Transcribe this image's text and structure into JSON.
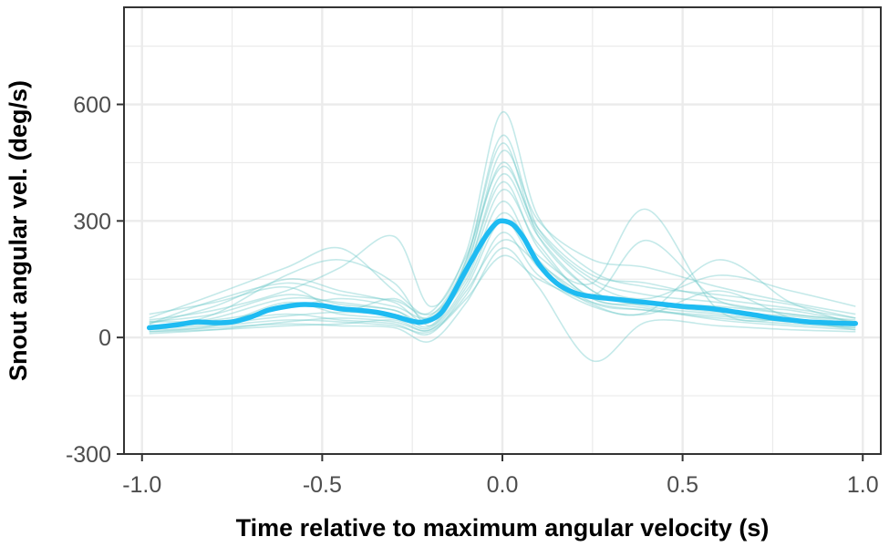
{
  "chart_data": {
    "type": "line",
    "title": "",
    "xlabel": "Time relative to maximum angular velocity (s)",
    "ylabel": "Snout angular vel. (deg/s)",
    "xlim": [
      -1.05,
      1.05
    ],
    "ylim": [
      -300,
      850
    ],
    "x_ticks": [
      -1.0,
      -0.5,
      0.0,
      0.5,
      1.0
    ],
    "x_tick_labels": [
      "-1.0",
      "-0.5",
      "0.0",
      "0.5",
      "1.0"
    ],
    "y_ticks": [
      -300,
      0,
      300,
      600
    ],
    "y_tick_labels": [
      "-300",
      "0",
      "300",
      "600"
    ],
    "grid": true,
    "legend": "none",
    "colors": {
      "mean_line": "#1EBBF2",
      "trials": "#6CC8C8",
      "grid": "#EBEBEB",
      "border": "#333333"
    },
    "series": [
      {
        "role": "mean",
        "x": [
          -0.98,
          -0.9,
          -0.85,
          -0.8,
          -0.75,
          -0.7,
          -0.65,
          -0.6,
          -0.55,
          -0.5,
          -0.45,
          -0.4,
          -0.35,
          -0.3,
          -0.25,
          -0.22,
          -0.18,
          -0.15,
          -0.1,
          -0.05,
          -0.02,
          0.0,
          0.03,
          0.06,
          0.1,
          0.15,
          0.2,
          0.25,
          0.3,
          0.35,
          0.4,
          0.45,
          0.5,
          0.55,
          0.6,
          0.65,
          0.7,
          0.75,
          0.8,
          0.85,
          0.9,
          0.95,
          0.98
        ],
        "y": [
          25,
          33,
          40,
          38,
          40,
          52,
          70,
          80,
          85,
          82,
          74,
          70,
          65,
          55,
          42,
          40,
          55,
          90,
          175,
          255,
          292,
          300,
          290,
          255,
          190,
          140,
          115,
          105,
          100,
          95,
          90,
          85,
          80,
          77,
          72,
          65,
          58,
          50,
          45,
          40,
          38,
          36,
          36
        ]
      },
      {
        "role": "trial",
        "x": [
          -0.98,
          -0.8,
          -0.6,
          -0.45,
          -0.3,
          -0.2,
          -0.1,
          0.0,
          0.1,
          0.25,
          0.4,
          0.6,
          0.8,
          0.98
        ],
        "y": [
          40,
          60,
          110,
          85,
          70,
          30,
          170,
          420,
          260,
          120,
          80,
          60,
          40,
          30
        ]
      },
      {
        "role": "trial",
        "x": [
          -0.98,
          -0.8,
          -0.6,
          -0.45,
          -0.3,
          -0.2,
          -0.1,
          0.0,
          0.1,
          0.25,
          0.4,
          0.6,
          0.8,
          0.98
        ],
        "y": [
          20,
          30,
          90,
          60,
          50,
          45,
          150,
          350,
          200,
          90,
          70,
          50,
          35,
          25
        ]
      },
      {
        "role": "trial",
        "x": [
          -0.98,
          -0.8,
          -0.6,
          -0.45,
          -0.3,
          -0.2,
          -0.1,
          0.0,
          0.1,
          0.25,
          0.4,
          0.6,
          0.8,
          0.98
        ],
        "y": [
          35,
          80,
          150,
          120,
          90,
          40,
          200,
          520,
          280,
          150,
          110,
          90,
          60,
          45
        ]
      },
      {
        "role": "trial",
        "x": [
          -0.98,
          -0.8,
          -0.6,
          -0.45,
          -0.3,
          -0.2,
          -0.1,
          0.0,
          0.1,
          0.25,
          0.4,
          0.6,
          0.8,
          0.98
        ],
        "y": [
          30,
          40,
          60,
          45,
          35,
          10,
          120,
          250,
          190,
          100,
          75,
          45,
          30,
          20
        ]
      },
      {
        "role": "trial",
        "x": [
          -0.98,
          -0.8,
          -0.6,
          -0.45,
          -0.3,
          -0.2,
          -0.1,
          0.0,
          0.1,
          0.25,
          0.4,
          0.6,
          0.8,
          0.98
        ],
        "y": [
          50,
          110,
          180,
          230,
          120,
          60,
          180,
          480,
          300,
          200,
          180,
          130,
          90,
          60
        ]
      },
      {
        "role": "trial",
        "x": [
          -0.98,
          -0.8,
          -0.6,
          -0.45,
          -0.3,
          -0.2,
          -0.1,
          0.0,
          0.1,
          0.25,
          0.4,
          0.6,
          0.8,
          0.98
        ],
        "y": [
          15,
          25,
          35,
          30,
          25,
          -10,
          90,
          230,
          130,
          -60,
          40,
          30,
          20,
          15
        ]
      },
      {
        "role": "trial",
        "x": [
          -0.98,
          -0.8,
          -0.6,
          -0.45,
          -0.3,
          -0.2,
          -0.1,
          0.0,
          0.1,
          0.25,
          0.4,
          0.6,
          0.8,
          0.98
        ],
        "y": [
          25,
          50,
          100,
          90,
          70,
          40,
          160,
          380,
          240,
          110,
          250,
          95,
          70,
          40
        ]
      },
      {
        "role": "trial",
        "x": [
          -0.98,
          -0.8,
          -0.6,
          -0.45,
          -0.3,
          -0.2,
          -0.1,
          0.0,
          0.1,
          0.25,
          0.4,
          0.6,
          0.8,
          0.98
        ],
        "y": [
          45,
          70,
          120,
          180,
          260,
          80,
          220,
          580,
          310,
          170,
          130,
          110,
          85,
          50
        ]
      },
      {
        "role": "trial",
        "x": [
          -0.98,
          -0.8,
          -0.6,
          -0.45,
          -0.3,
          -0.2,
          -0.1,
          0.0,
          0.1,
          0.25,
          0.4,
          0.6,
          0.8,
          0.98
        ],
        "y": [
          10,
          20,
          40,
          50,
          40,
          20,
          110,
          270,
          160,
          80,
          60,
          120,
          50,
          20
        ]
      },
      {
        "role": "trial",
        "x": [
          -0.98,
          -0.8,
          -0.6,
          -0.45,
          -0.3,
          -0.2,
          -0.1,
          0.0,
          0.1,
          0.25,
          0.4,
          0.6,
          0.8,
          0.98
        ],
        "y": [
          60,
          90,
          130,
          70,
          100,
          50,
          190,
          450,
          270,
          140,
          100,
          160,
          120,
          80
        ]
      },
      {
        "role": "trial",
        "x": [
          -0.98,
          -0.8,
          -0.6,
          -0.45,
          -0.3,
          -0.2,
          -0.1,
          0.0,
          0.1,
          0.25,
          0.4,
          0.6,
          0.8,
          0.98
        ],
        "y": [
          30,
          35,
          55,
          65,
          55,
          25,
          140,
          320,
          210,
          140,
          330,
          70,
          45,
          30
        ]
      },
      {
        "role": "trial",
        "x": [
          -0.98,
          -0.8,
          -0.6,
          -0.45,
          -0.3,
          -0.2,
          -0.1,
          0.0,
          0.1,
          0.25,
          0.4,
          0.6,
          0.8,
          0.98
        ],
        "y": [
          20,
          60,
          160,
          200,
          140,
          30,
          170,
          400,
          230,
          100,
          85,
          65,
          55,
          35
        ]
      },
      {
        "role": "trial",
        "x": [
          -0.98,
          -0.8,
          -0.6,
          -0.45,
          -0.3,
          -0.2,
          -0.1,
          0.0,
          0.1,
          0.25,
          0.4,
          0.6,
          0.8,
          0.98
        ],
        "y": [
          40,
          45,
          75,
          100,
          80,
          55,
          200,
          500,
          260,
          120,
          90,
          80,
          60,
          40
        ]
      },
      {
        "role": "trial",
        "x": [
          -0.98,
          -0.8,
          -0.6,
          -0.45,
          -0.3,
          -0.2,
          -0.1,
          0.0,
          0.1,
          0.25,
          0.4,
          0.6,
          0.8,
          0.98
        ],
        "y": [
          25,
          30,
          45,
          40,
          30,
          15,
          100,
          210,
          150,
          90,
          70,
          55,
          40,
          25
        ]
      },
      {
        "role": "trial",
        "x": [
          -0.98,
          -0.8,
          -0.6,
          -0.45,
          -0.3,
          -0.2,
          -0.1,
          0.0,
          0.1,
          0.25,
          0.4,
          0.6,
          0.8,
          0.98
        ],
        "y": [
          35,
          95,
          140,
          110,
          95,
          65,
          210,
          440,
          280,
          160,
          140,
          100,
          75,
          50
        ]
      },
      {
        "role": "trial",
        "x": [
          -0.98,
          -0.8,
          -0.6,
          -0.45,
          -0.3,
          -0.2,
          -0.1,
          0.0,
          0.1,
          0.25,
          0.4,
          0.6,
          0.8,
          0.98
        ],
        "y": [
          15,
          20,
          30,
          35,
          45,
          20,
          130,
          300,
          180,
          85,
          65,
          200,
          90,
          35
        ]
      }
    ]
  }
}
